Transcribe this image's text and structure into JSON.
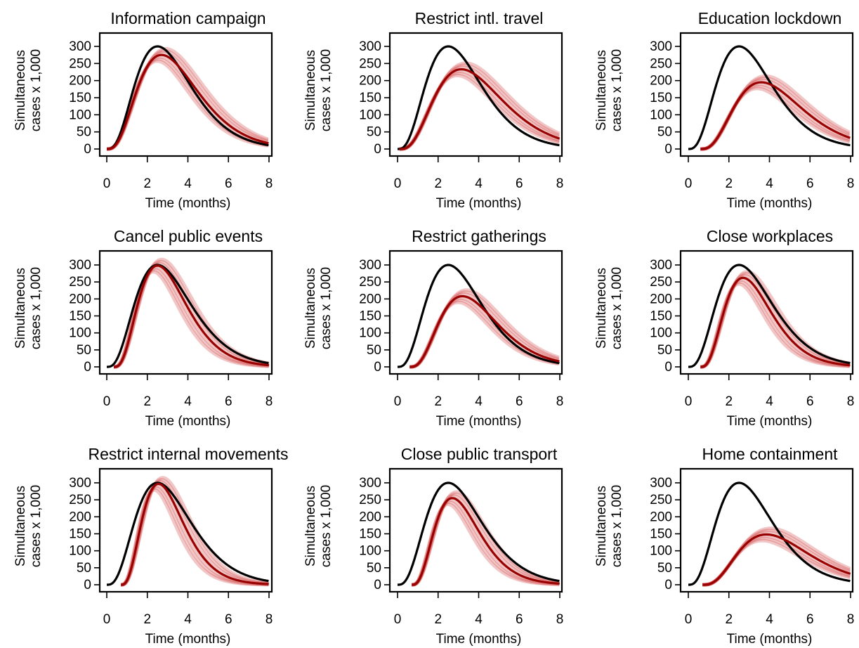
{
  "colors": {
    "baseline": "#000000",
    "intervention": "#990000",
    "intervention_band": "#cc3333"
  },
  "chart_data": [
    {
      "type": "line",
      "title": "Information campaign",
      "xlabel": "Time (months)",
      "ylabel": "Simultaneous cases x 1,000",
      "xlim": [
        0,
        8
      ],
      "ylim": [
        0,
        300
      ],
      "xticks": [
        0,
        2,
        4,
        6,
        8
      ],
      "yticks": [
        0,
        50,
        100,
        150,
        200,
        250,
        300
      ],
      "series": [
        {
          "role": "baseline",
          "start": 0,
          "peak_x": 2.5,
          "peak_y": 300,
          "color": "#000000"
        },
        {
          "role": "intervention",
          "start": 0,
          "peak_x": 2.7,
          "peak_y": 275,
          "color": "#990000"
        }
      ]
    },
    {
      "type": "line",
      "title": "Restrict intl. travel",
      "xlabel": "Time (months)",
      "ylabel": "Simultaneous cases x 1,000",
      "xlim": [
        0,
        8
      ],
      "ylim": [
        0,
        300
      ],
      "xticks": [
        0,
        2,
        4,
        6,
        8
      ],
      "yticks": [
        0,
        50,
        100,
        150,
        200,
        250,
        300
      ],
      "series": [
        {
          "role": "baseline",
          "start": 0,
          "peak_x": 2.5,
          "peak_y": 300,
          "color": "#000000"
        },
        {
          "role": "intervention",
          "start": 0.1,
          "peak_x": 3.15,
          "peak_y": 233,
          "color": "#990000"
        }
      ]
    },
    {
      "type": "line",
      "title": "Education lockdown",
      "xlabel": "Time (months)",
      "ylabel": "Simultaneous cases x 1,000",
      "xlim": [
        0,
        8
      ],
      "ylim": [
        0,
        300
      ],
      "xticks": [
        0,
        2,
        4,
        6,
        8
      ],
      "yticks": [
        0,
        50,
        100,
        150,
        200,
        250,
        300
      ],
      "series": [
        {
          "role": "baseline",
          "start": 0,
          "peak_x": 2.5,
          "peak_y": 300,
          "color": "#000000"
        },
        {
          "role": "intervention",
          "start": 0.6,
          "peak_x": 3.6,
          "peak_y": 195,
          "color": "#990000"
        }
      ]
    },
    {
      "type": "line",
      "title": "Cancel public events",
      "xlabel": "Time (months)",
      "ylabel": "Simultaneous cases x 1,000",
      "xlim": [
        0,
        8
      ],
      "ylim": [
        0,
        300
      ],
      "xticks": [
        0,
        2,
        4,
        6,
        8
      ],
      "yticks": [
        0,
        50,
        100,
        150,
        200,
        250,
        300
      ],
      "series": [
        {
          "role": "baseline",
          "start": 0,
          "peak_x": 2.5,
          "peak_y": 300,
          "color": "#000000"
        },
        {
          "role": "intervention",
          "start": 0.35,
          "peak_x": 2.5,
          "peak_y": 298,
          "color": "#990000"
        }
      ]
    },
    {
      "type": "line",
      "title": "Restrict gatherings",
      "xlabel": "Time (months)",
      "ylabel": "Simultaneous cases x 1,000",
      "xlim": [
        0,
        8
      ],
      "ylim": [
        0,
        300
      ],
      "xticks": [
        0,
        2,
        4,
        6,
        8
      ],
      "yticks": [
        0,
        50,
        100,
        150,
        200,
        250,
        300
      ],
      "series": [
        {
          "role": "baseline",
          "start": 0,
          "peak_x": 2.5,
          "peak_y": 300,
          "color": "#000000"
        },
        {
          "role": "intervention",
          "start": 0.6,
          "peak_x": 3.2,
          "peak_y": 208,
          "color": "#990000"
        }
      ]
    },
    {
      "type": "line",
      "title": "Close workplaces",
      "xlabel": "Time (months)",
      "ylabel": "Simultaneous cases x 1,000",
      "xlim": [
        0,
        8
      ],
      "ylim": [
        0,
        300
      ],
      "xticks": [
        0,
        2,
        4,
        6,
        8
      ],
      "yticks": [
        0,
        50,
        100,
        150,
        200,
        250,
        300
      ],
      "series": [
        {
          "role": "baseline",
          "start": 0,
          "peak_x": 2.5,
          "peak_y": 300,
          "color": "#000000"
        },
        {
          "role": "intervention",
          "start": 0.6,
          "peak_x": 2.7,
          "peak_y": 262,
          "color": "#990000"
        }
      ]
    },
    {
      "type": "line",
      "title": "Restrict internal movements",
      "xlabel": "Time (months)",
      "ylabel": "Simultaneous cases x 1,000",
      "xlim": [
        0,
        8
      ],
      "ylim": [
        0,
        300
      ],
      "xticks": [
        0,
        2,
        4,
        6,
        8
      ],
      "yticks": [
        0,
        50,
        100,
        150,
        200,
        250,
        300
      ],
      "series": [
        {
          "role": "baseline",
          "start": 0,
          "peak_x": 2.5,
          "peak_y": 300,
          "color": "#000000"
        },
        {
          "role": "intervention",
          "start": 0.7,
          "peak_x": 2.55,
          "peak_y": 297,
          "color": "#990000"
        }
      ]
    },
    {
      "type": "line",
      "title": "Close public transport",
      "xlabel": "Time (months)",
      "ylabel": "Simultaneous cases x 1,000",
      "xlim": [
        0,
        8
      ],
      "ylim": [
        0,
        300
      ],
      "xticks": [
        0,
        2,
        4,
        6,
        8
      ],
      "yticks": [
        0,
        50,
        100,
        150,
        200,
        250,
        300
      ],
      "series": [
        {
          "role": "baseline",
          "start": 0,
          "peak_x": 2.5,
          "peak_y": 300,
          "color": "#000000"
        },
        {
          "role": "intervention",
          "start": 0.7,
          "peak_x": 2.7,
          "peak_y": 255,
          "color": "#990000"
        }
      ]
    },
    {
      "type": "line",
      "title": "Home containment",
      "xlabel": "Time (months)",
      "ylabel": "Simultaneous cases x 1,000",
      "xlim": [
        0,
        8
      ],
      "ylim": [
        0,
        300
      ],
      "xticks": [
        0,
        2,
        4,
        6,
        8
      ],
      "yticks": [
        0,
        50,
        100,
        150,
        200,
        250,
        300
      ],
      "series": [
        {
          "role": "baseline",
          "start": 0,
          "peak_x": 2.5,
          "peak_y": 300,
          "color": "#000000"
        },
        {
          "role": "intervention",
          "start": 0.7,
          "peak_x": 3.85,
          "peak_y": 148,
          "color": "#990000"
        }
      ]
    }
  ]
}
